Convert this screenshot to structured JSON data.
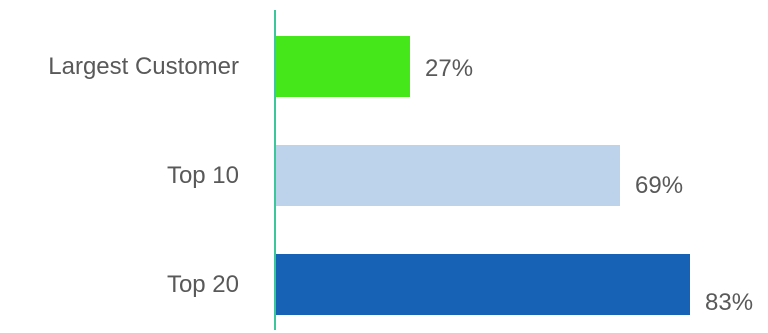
{
  "chart_data": {
    "type": "bar",
    "orientation": "horizontal",
    "categories": [
      "Largest Customer",
      "Top 10",
      "Top 20"
    ],
    "values": [
      27,
      69,
      83
    ],
    "value_format": "{v}%",
    "colors": [
      "#45E61A",
      "#BDD3EC",
      "#1862B6"
    ],
    "axis_color": "#3CC79A",
    "xlim": [
      0,
      100
    ],
    "grid": false,
    "legend": "none"
  }
}
